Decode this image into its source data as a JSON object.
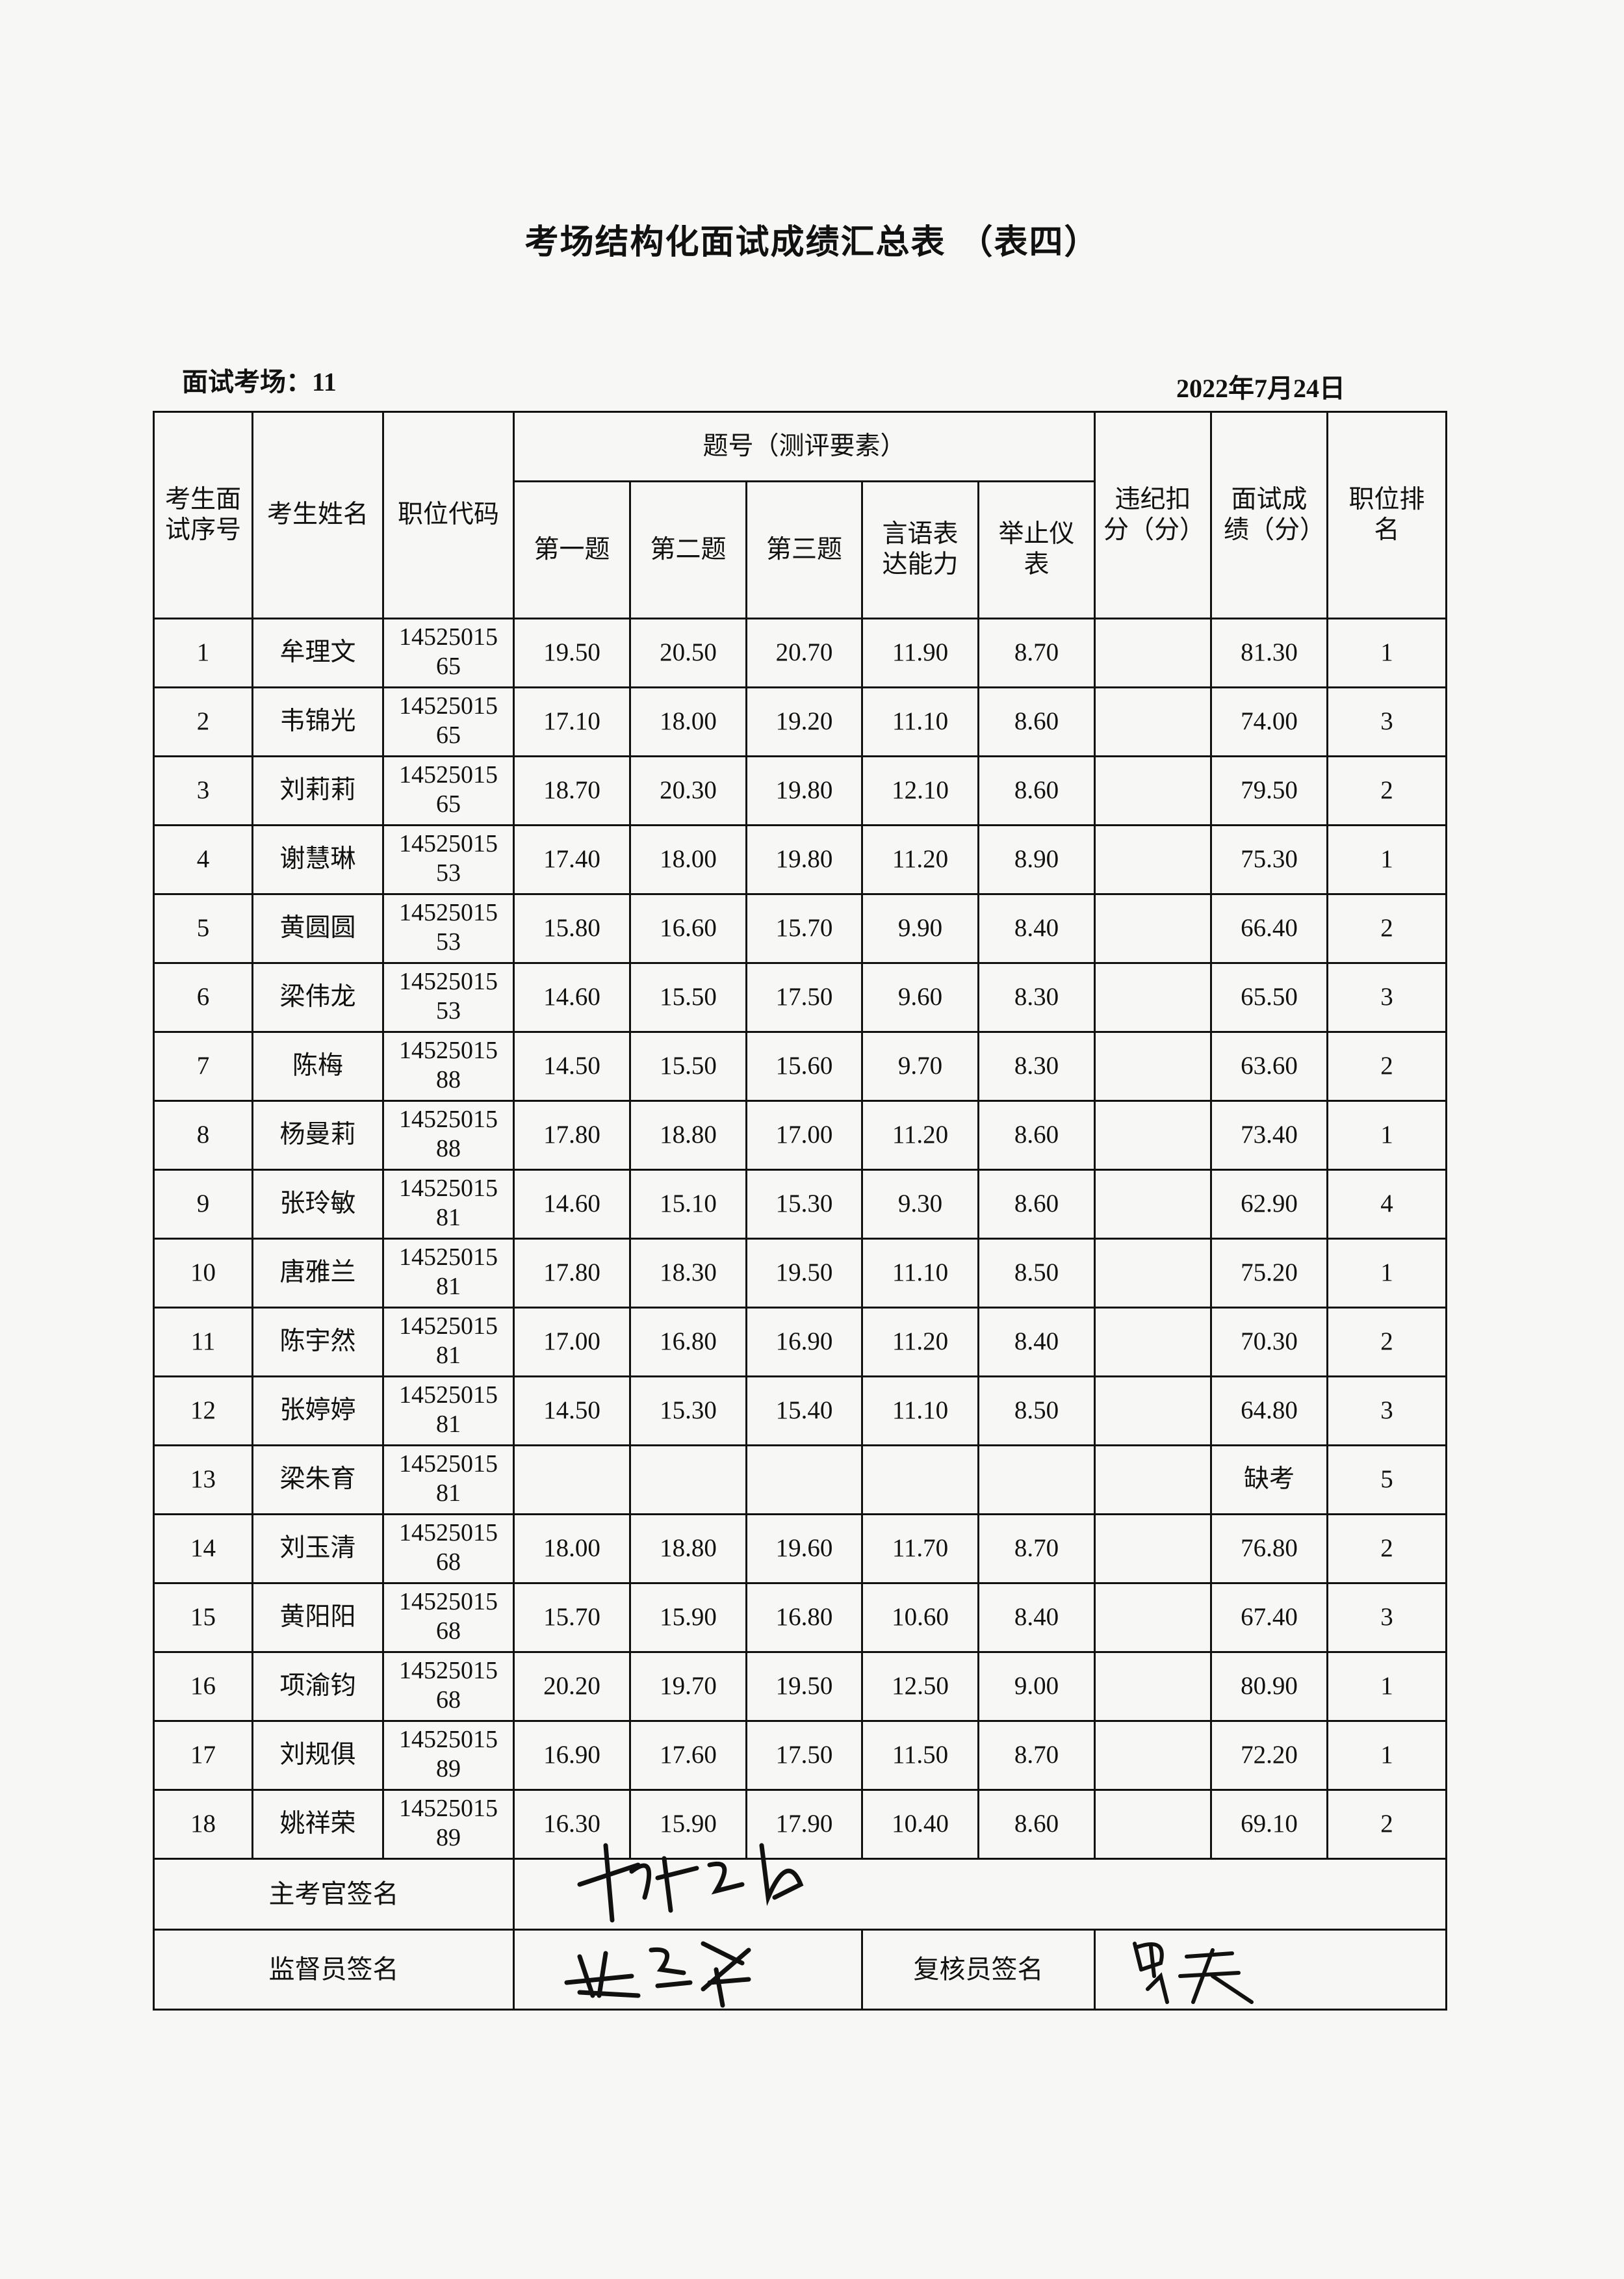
{
  "title": "考场结构化面试成绩汇总表 （表四）",
  "room_label": "面试考场：11",
  "date": "2022年7月24日",
  "headers": {
    "seq": "考生面试序号",
    "name": "考生姓名",
    "code": "职位代码",
    "group": "题号（测评要素）",
    "q1": "第一题",
    "q2": "第二题",
    "q3": "第三题",
    "speech": "言语表达能力",
    "manner": "举止仪表",
    "penalty": "违纪扣分（分）",
    "score": "面试成绩（分）",
    "rank": "职位排名"
  },
  "rows": [
    [
      "1",
      "牟理文",
      "1452501565",
      "19.50",
      "20.50",
      "20.70",
      "11.90",
      "8.70",
      "",
      "81.30",
      "1"
    ],
    [
      "2",
      "韦锦光",
      "1452501565",
      "17.10",
      "18.00",
      "19.20",
      "11.10",
      "8.60",
      "",
      "74.00",
      "3"
    ],
    [
      "3",
      "刘莉莉",
      "1452501565",
      "18.70",
      "20.30",
      "19.80",
      "12.10",
      "8.60",
      "",
      "79.50",
      "2"
    ],
    [
      "4",
      "谢慧琳",
      "1452501553",
      "17.40",
      "18.00",
      "19.80",
      "11.20",
      "8.90",
      "",
      "75.30",
      "1"
    ],
    [
      "5",
      "黄圆圆",
      "1452501553",
      "15.80",
      "16.60",
      "15.70",
      "9.90",
      "8.40",
      "",
      "66.40",
      "2"
    ],
    [
      "6",
      "梁伟龙",
      "1452501553",
      "14.60",
      "15.50",
      "17.50",
      "9.60",
      "8.30",
      "",
      "65.50",
      "3"
    ],
    [
      "7",
      "陈梅",
      "1452501588",
      "14.50",
      "15.50",
      "15.60",
      "9.70",
      "8.30",
      "",
      "63.60",
      "2"
    ],
    [
      "8",
      "杨曼莉",
      "1452501588",
      "17.80",
      "18.80",
      "17.00",
      "11.20",
      "8.60",
      "",
      "73.40",
      "1"
    ],
    [
      "9",
      "张玲敏",
      "1452501581",
      "14.60",
      "15.10",
      "15.30",
      "9.30",
      "8.60",
      "",
      "62.90",
      "4"
    ],
    [
      "10",
      "唐雅兰",
      "1452501581",
      "17.80",
      "18.30",
      "19.50",
      "11.10",
      "8.50",
      "",
      "75.20",
      "1"
    ],
    [
      "11",
      "陈宇然",
      "1452501581",
      "17.00",
      "16.80",
      "16.90",
      "11.20",
      "8.40",
      "",
      "70.30",
      "2"
    ],
    [
      "12",
      "张婷婷",
      "1452501581",
      "14.50",
      "15.30",
      "15.40",
      "11.10",
      "8.50",
      "",
      "64.80",
      "3"
    ],
    [
      "13",
      "梁朱育",
      "1452501581",
      "",
      "",
      "",
      "",
      "",
      "",
      "缺考",
      "5"
    ],
    [
      "14",
      "刘玉清",
      "1452501568",
      "18.00",
      "18.80",
      "19.60",
      "11.70",
      "8.70",
      "",
      "76.80",
      "2"
    ],
    [
      "15",
      "黄阳阳",
      "1452501568",
      "15.70",
      "15.90",
      "16.80",
      "10.60",
      "8.40",
      "",
      "67.40",
      "3"
    ],
    [
      "16",
      "项渝钧",
      "1452501568",
      "20.20",
      "19.70",
      "19.50",
      "12.50",
      "9.00",
      "",
      "80.90",
      "1"
    ],
    [
      "17",
      "刘规俱",
      "1452501589",
      "16.90",
      "17.60",
      "17.50",
      "11.50",
      "8.70",
      "",
      "72.20",
      "1"
    ],
    [
      "18",
      "姚祥荣",
      "1452501589",
      "16.30",
      "15.90",
      "17.90",
      "10.40",
      "8.60",
      "",
      "69.10",
      "2"
    ]
  ],
  "signatures": {
    "chief_label": "主考官签名",
    "supervisor_label": "监督员签名",
    "reviewer_label": "复核员签名"
  }
}
